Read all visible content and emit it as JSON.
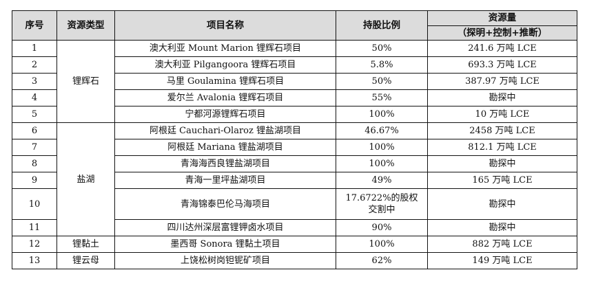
{
  "headers": {
    "no": "序号",
    "type": "资源类型",
    "name": "项目名称",
    "share": "持股比例",
    "resource": "资源量",
    "resource_sub": "（探明+控制+推断）"
  },
  "groups": {
    "spodumene": "锂辉石",
    "salt_lake": "盐湖",
    "clay": "锂黏土",
    "mica": "锂云母"
  },
  "rows": [
    {
      "no": "1",
      "name": "澳大利亚 Mount Marion 锂辉石项目",
      "share": "50%",
      "resource": "241.6 万吨 LCE"
    },
    {
      "no": "2",
      "name": "澳大利亚 Pilgangoora 锂辉石项目",
      "share": "5.8%",
      "resource": "693.3 万吨 LCE"
    },
    {
      "no": "3",
      "name": "马里 Goulamina 锂辉石项目",
      "share": "50%",
      "resource": "387.97 万吨 LCE"
    },
    {
      "no": "4",
      "name": "爱尔兰 Avalonia 锂辉石项目",
      "share": "55%",
      "resource": "勘探中"
    },
    {
      "no": "5",
      "name": "宁都河源锂辉石项目",
      "share": "100%",
      "resource": "10 万吨 LCE"
    },
    {
      "no": "6",
      "name": "阿根廷 Cauchari-Olaroz 锂盐湖项目",
      "share": "46.67%",
      "resource": "2458 万吨 LCE"
    },
    {
      "no": "7",
      "name": "阿根廷 Mariana 锂盐湖项目",
      "share": "100%",
      "resource": "812.1 万吨 LCE"
    },
    {
      "no": "8",
      "name": "青海海西良锂盐湖项目",
      "share": "100%",
      "resource": "勘探中"
    },
    {
      "no": "9",
      "name": "青海一里坪盐湖项目",
      "share": "49%",
      "resource": "165 万吨 LCE"
    },
    {
      "no": "10",
      "name": "青海锦泰巴伦马海项目",
      "share": "17.6722%的股权交割中",
      "resource": "勘探中"
    },
    {
      "no": "11",
      "name": "四川达州深层富锂钾卤水项目",
      "share": "90%",
      "resource": "勘探中"
    },
    {
      "no": "12",
      "name": "墨西哥 Sonora 锂黏土项目",
      "share": "100%",
      "resource": "882 万吨 LCE"
    },
    {
      "no": "13",
      "name": "上饶松树岗钽铌矿项目",
      "share": "62%",
      "resource": "149 万吨 LCE"
    }
  ]
}
